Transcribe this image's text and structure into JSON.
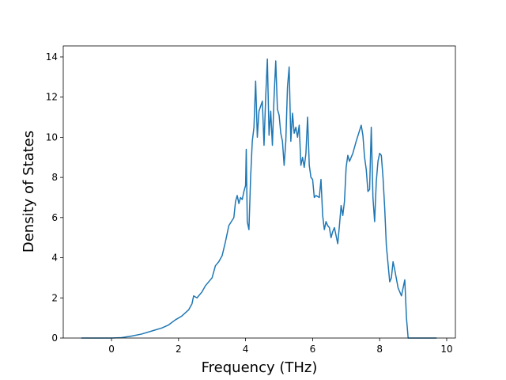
{
  "chart_data": {
    "type": "line",
    "x_label": "Frequency (THz)",
    "y_label": "Density of States",
    "color": "#1f77b4",
    "xlim": [
      -1.44,
      10.26
    ],
    "ylim": [
      0,
      14.55
    ],
    "xticks": [
      0,
      2,
      4,
      6,
      8,
      10
    ],
    "yticks": [
      0,
      2,
      4,
      6,
      8,
      10,
      12,
      14
    ],
    "x": [
      -0.9,
      0,
      0.3,
      0.6,
      0.9,
      1.2,
      1.5,
      1.7,
      1.9,
      2.1,
      2.3,
      2.4,
      2.45,
      2.55,
      2.7,
      2.8,
      3.0,
      3.1,
      3.2,
      3.3,
      3.4,
      3.5,
      3.65,
      3.7,
      3.75,
      3.8,
      3.85,
      3.9,
      3.95,
      4.0,
      4.02,
      4.05,
      4.1,
      4.15,
      4.2,
      4.25,
      4.3,
      4.35,
      4.4,
      4.5,
      4.55,
      4.6,
      4.65,
      4.7,
      4.75,
      4.8,
      4.85,
      4.9,
      4.95,
      5.0,
      5.05,
      5.1,
      5.15,
      5.2,
      5.25,
      5.3,
      5.35,
      5.4,
      5.45,
      5.5,
      5.55,
      5.6,
      5.65,
      5.7,
      5.75,
      5.8,
      5.85,
      5.9,
      5.95,
      6.0,
      6.05,
      6.1,
      6.2,
      6.25,
      6.3,
      6.35,
      6.4,
      6.45,
      6.5,
      6.55,
      6.6,
      6.65,
      6.7,
      6.75,
      6.8,
      6.85,
      6.9,
      6.95,
      7.0,
      7.05,
      7.1,
      7.2,
      7.3,
      7.45,
      7.5,
      7.55,
      7.6,
      7.65,
      7.7,
      7.75,
      7.8,
      7.85,
      7.9,
      7.95,
      8.0,
      8.05,
      8.1,
      8.15,
      8.2,
      8.3,
      8.35,
      8.4,
      8.45,
      8.55,
      8.65,
      8.75,
      8.8,
      8.85,
      9.7
    ],
    "values": [
      0,
      0,
      0.02,
      0.1,
      0.2,
      0.35,
      0.5,
      0.65,
      0.9,
      1.1,
      1.4,
      1.7,
      2.1,
      2.0,
      2.3,
      2.6,
      3.0,
      3.6,
      3.8,
      4.1,
      4.8,
      5.6,
      6.0,
      6.8,
      7.1,
      6.7,
      7.0,
      6.9,
      7.3,
      7.6,
      9.4,
      5.8,
      5.4,
      8.0,
      9.8,
      10.5,
      12.8,
      10.0,
      11.3,
      11.8,
      9.6,
      12.0,
      13.9,
      10.1,
      11.3,
      9.6,
      12.0,
      13.8,
      11.4,
      11.1,
      10.2,
      9.8,
      8.6,
      9.8,
      12.5,
      13.5,
      9.8,
      11.2,
      10.2,
      10.5,
      10.0,
      10.6,
      8.6,
      9.0,
      8.5,
      9.2,
      11.0,
      8.6,
      8.0,
      7.9,
      7.0,
      7.1,
      7.0,
      7.9,
      6.1,
      5.4,
      5.8,
      5.6,
      5.5,
      5.0,
      5.3,
      5.5,
      5.1,
      4.7,
      5.6,
      6.6,
      6.1,
      6.8,
      8.5,
      9.1,
      8.8,
      9.2,
      9.8,
      10.6,
      10.1,
      9.0,
      8.4,
      7.3,
      7.4,
      10.5,
      7.0,
      5.8,
      7.8,
      8.8,
      9.2,
      9.1,
      8.0,
      6.5,
      4.6,
      2.8,
      3.0,
      3.8,
      3.4,
      2.5,
      2.1,
      2.9,
      1.0,
      0,
      0
    ]
  }
}
